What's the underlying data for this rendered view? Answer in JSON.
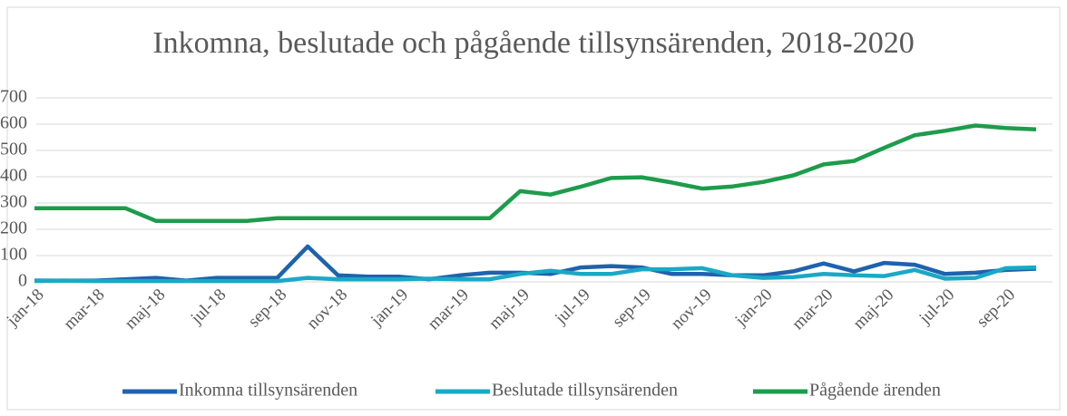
{
  "chart_data": {
    "type": "line",
    "title": "Inkomna, beslutade och pågående tillsynsärenden, 2018-2020",
    "categories": [
      "jan-18",
      null,
      "mar-18",
      null,
      "maj-18",
      null,
      "jul-18",
      null,
      "sep-18",
      null,
      "nov-18",
      null,
      "jan-19",
      null,
      "mar-19",
      null,
      "maj-19",
      null,
      "jul-19",
      null,
      "sep-19",
      null,
      "nov-19",
      null,
      "jan-20",
      null,
      "mar-20",
      null,
      "maj-20",
      null,
      "jul-20",
      null,
      "sep-20",
      null
    ],
    "series": [
      {
        "name": "Inkomna tillsynsärenden",
        "color": "#1f62ae",
        "values": [
          5,
          5,
          5,
          10,
          15,
          5,
          15,
          15,
          15,
          135,
          25,
          20,
          20,
          10,
          25,
          35,
          35,
          30,
          55,
          60,
          55,
          30,
          30,
          25,
          25,
          40,
          70,
          40,
          72,
          65,
          30,
          35,
          45,
          50
        ]
      },
      {
        "name": "Beslutade tillsynsärenden",
        "color": "#19a9c6",
        "values": [
          3,
          5,
          3,
          3,
          3,
          3,
          3,
          3,
          3,
          15,
          10,
          10,
          10,
          12,
          10,
          10,
          30,
          42,
          30,
          30,
          48,
          48,
          52,
          25,
          15,
          18,
          30,
          25,
          22,
          45,
          12,
          15,
          52,
          55
        ]
      },
      {
        "name": "Pågående ärenden",
        "color": "#1d9c4c",
        "values": [
          280,
          280,
          280,
          280,
          232,
          232,
          232,
          232,
          242,
          242,
          242,
          242,
          242,
          242,
          242,
          242,
          345,
          332,
          362,
          395,
          398,
          378,
          355,
          363,
          380,
          405,
          447,
          460,
          510,
          558,
          575,
          595,
          585,
          580
        ]
      }
    ],
    "ylim": [
      0,
      700
    ],
    "yticks": [
      0,
      100,
      200,
      300,
      400,
      500,
      600,
      700
    ],
    "grid": true,
    "legend": "bottom"
  }
}
